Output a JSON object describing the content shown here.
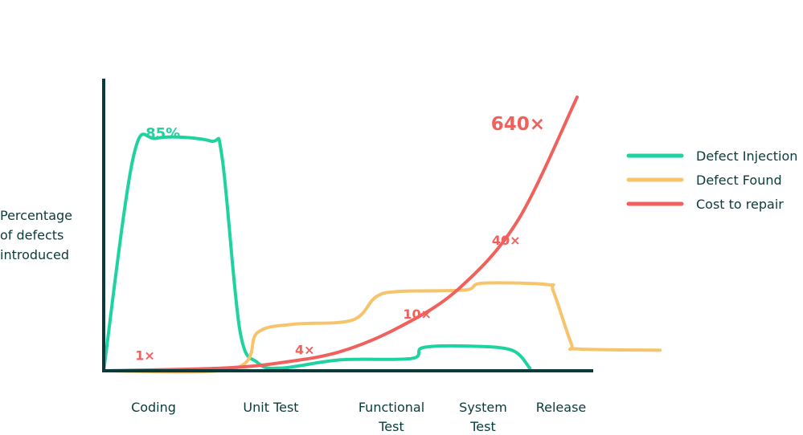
{
  "chart_data": {
    "type": "line",
    "ylabel": [
      "Percentage",
      "of defects",
      "introduced"
    ],
    "categories": [
      "Coding",
      "Unit Test",
      "Functional Test",
      "System Test",
      "Release"
    ],
    "category_label_lines": [
      [
        "Coding"
      ],
      [
        "Unit Test"
      ],
      [
        "Functional",
        "Test"
      ],
      [
        "System",
        "Test"
      ],
      [
        "Release"
      ]
    ],
    "legend_position": "right",
    "grid": false,
    "series": [
      {
        "name": "Defect Injection",
        "color": "#1fd3a0",
        "key_point_pct": 85,
        "points": [
          [
            0.0,
            0
          ],
          [
            0.25,
            78
          ],
          [
            0.45,
            85
          ],
          [
            0.9,
            84
          ],
          [
            1.0,
            78
          ],
          [
            1.15,
            15
          ],
          [
            1.3,
            3
          ],
          [
            1.5,
            1
          ],
          [
            2.0,
            4
          ],
          [
            2.6,
            4.5
          ],
          [
            2.7,
            8.5
          ],
          [
            3.1,
            9
          ],
          [
            3.45,
            7.5
          ],
          [
            3.6,
            1
          ]
        ]
      },
      {
        "name": "Defect Found",
        "color": "#f7c46c",
        "points": [
          [
            0.0,
            0
          ],
          [
            1.1,
            0.8
          ],
          [
            1.3,
            14
          ],
          [
            1.6,
            17
          ],
          [
            2.1,
            18.5
          ],
          [
            2.3,
            27
          ],
          [
            2.5,
            29
          ],
          [
            3.05,
            29.5
          ],
          [
            3.2,
            32
          ],
          [
            3.75,
            31.5
          ],
          [
            3.8,
            29
          ],
          [
            3.95,
            10
          ],
          [
            4.0,
            8
          ],
          [
            4.7,
            7.5
          ]
        ]
      },
      {
        "name": "Cost to repair",
        "color": "#f0605d",
        "points": [
          [
            0.0,
            0
          ],
          [
            1.0,
            1
          ],
          [
            1.5,
            3
          ],
          [
            2.0,
            7
          ],
          [
            2.5,
            16
          ],
          [
            3.0,
            30
          ],
          [
            3.5,
            55
          ],
          [
            4.0,
            100
          ]
        ]
      }
    ],
    "annotations": [
      {
        "text": "85%",
        "x": 0.5,
        "y": 85,
        "color": "#1fd3a0",
        "size": "medium"
      },
      {
        "text": "1×",
        "x": 0.35,
        "y": 4,
        "color": "#f0605d",
        "size": "small"
      },
      {
        "text": "4×",
        "x": 1.7,
        "y": 6,
        "color": "#f0605d",
        "size": "small"
      },
      {
        "text": "10×",
        "x": 2.65,
        "y": 19,
        "color": "#f0605d",
        "size": "small"
      },
      {
        "text": "40×",
        "x": 3.4,
        "y": 46,
        "color": "#f0605d",
        "size": "small"
      },
      {
        "text": "640×",
        "x": 3.5,
        "y": 88,
        "color": "#f0605d",
        "size": "large"
      }
    ],
    "xlim": [
      0,
      4
    ],
    "ylim": [
      0,
      100
    ]
  }
}
